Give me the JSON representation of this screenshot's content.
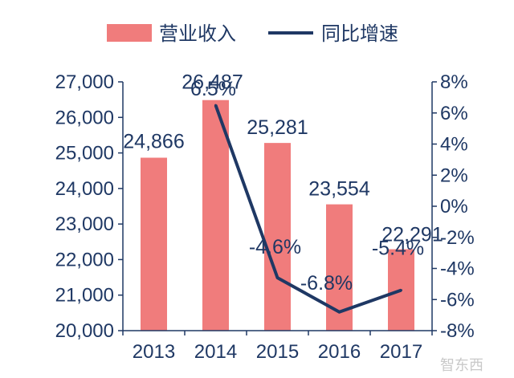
{
  "chart_data": {
    "type": "bar",
    "categories": [
      "2013",
      "2014",
      "2015",
      "2016",
      "2017"
    ],
    "series": [
      {
        "name": "营业收入",
        "type": "bar",
        "axis": "left",
        "values": [
          24866,
          26487,
          25281,
          23554,
          22291
        ],
        "labels": [
          "24,866",
          "26,487",
          "25,281",
          "23,554",
          "22,291"
        ],
        "color": "#f07c7c"
      },
      {
        "name": "同比增速",
        "type": "line",
        "axis": "right",
        "x": [
          "2014",
          "2015",
          "2016",
          "2017"
        ],
        "values": [
          6.5,
          -4.6,
          -6.8,
          -5.4
        ],
        "labels": [
          "6.5%",
          "-4.6%",
          "-6.8%",
          "-5.4%"
        ],
        "color": "#1f3864"
      }
    ],
    "ylim_left": [
      20000,
      27000
    ],
    "yticks_left": [
      "20,000",
      "21,000",
      "22,000",
      "23,000",
      "24,000",
      "25,000",
      "26,000",
      "27,000"
    ],
    "ylim_right": [
      -8,
      8
    ],
    "yticks_right": [
      "-8%",
      "-6%",
      "-4%",
      "-2%",
      "0%",
      "2%",
      "4%",
      "6%",
      "8%"
    ],
    "legend_position": "top",
    "grid": false,
    "title": "",
    "xlabel": "",
    "ylabel": ""
  },
  "watermark": "智东西"
}
